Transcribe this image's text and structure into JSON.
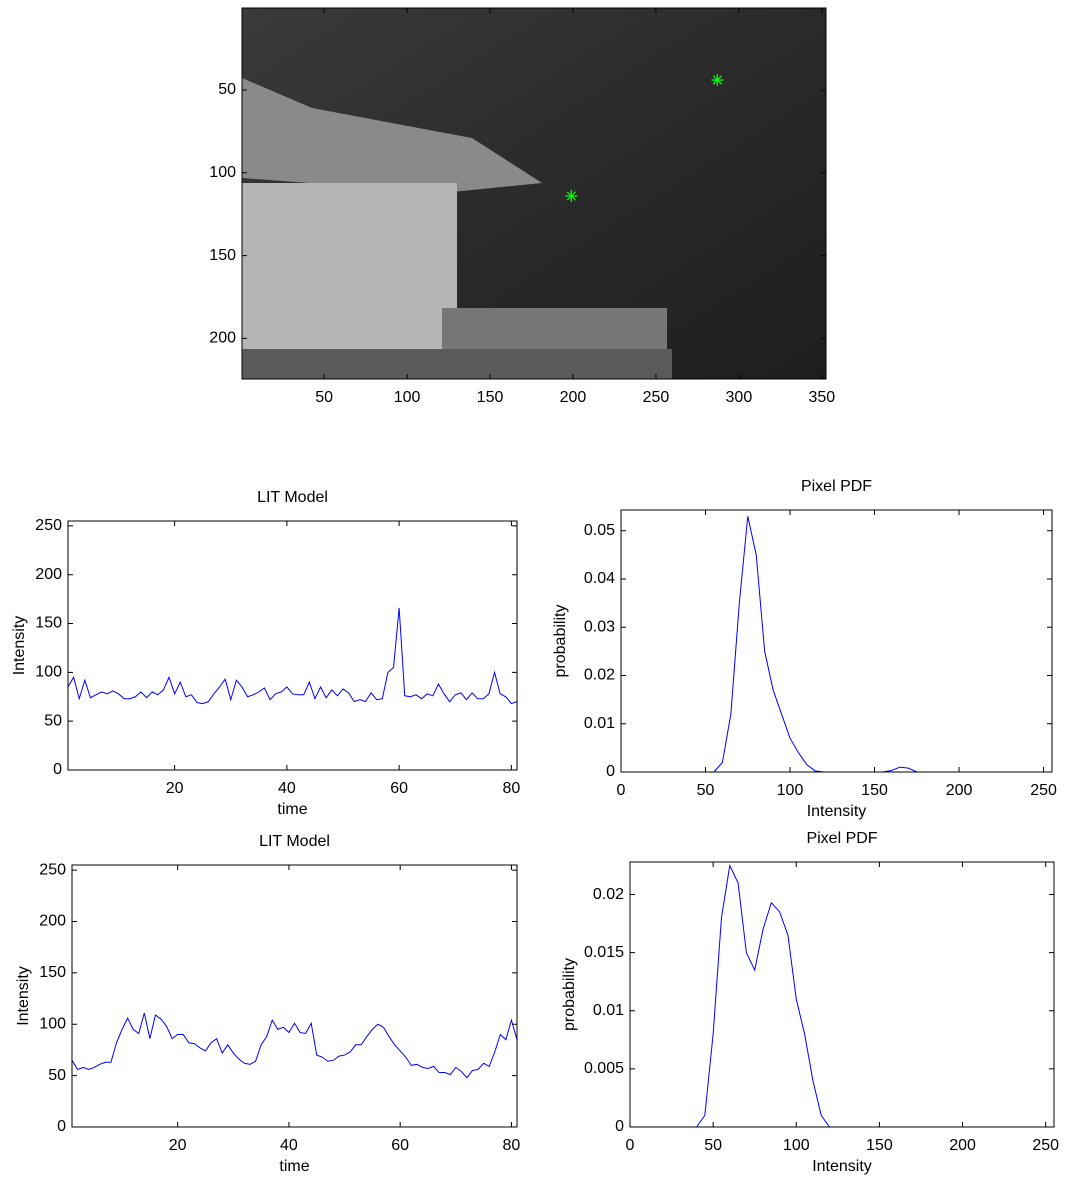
{
  "chart_data": [
    {
      "type": "image",
      "xlim": [
        0.5,
        352.5
      ],
      "ylim": [
        0.5,
        224.5
      ],
      "y_reversed": true,
      "xticks": [
        50,
        100,
        150,
        200,
        250,
        300,
        350
      ],
      "yticks": [
        50,
        100,
        150,
        200
      ],
      "points": {
        "x": [
          287,
          199
        ],
        "y": [
          44,
          114
        ],
        "color": "#00ff00"
      }
    },
    {
      "type": "line",
      "title": "LIT Model",
      "xlabel": "time",
      "ylabel": "Intensity",
      "color": "#0000ff",
      "xlim": [
        1,
        81
      ],
      "ylim": [
        0,
        255
      ],
      "xticks": [
        20,
        40,
        60,
        80
      ],
      "yticks": [
        0,
        50,
        100,
        150,
        200,
        250
      ],
      "x": [
        1,
        2,
        3,
        4,
        5,
        6,
        7,
        8,
        9,
        10,
        11,
        12,
        13,
        14,
        15,
        16,
        17,
        18,
        19,
        20,
        21,
        22,
        23,
        24,
        25,
        26,
        27,
        28,
        29,
        30,
        31,
        32,
        33,
        34,
        35,
        36,
        37,
        38,
        39,
        40,
        41,
        42,
        43,
        44,
        45,
        46,
        47,
        48,
        49,
        50,
        51,
        52,
        53,
        54,
        55,
        56,
        57,
        58,
        59,
        60,
        61,
        62,
        63,
        64,
        65,
        66,
        67,
        68,
        69,
        70,
        71,
        72,
        73,
        74,
        75,
        76,
        77,
        78,
        79,
        80,
        81
      ],
      "values": [
        85,
        95,
        73,
        92,
        74,
        77,
        80,
        78,
        81,
        78,
        73,
        73,
        75,
        80,
        74,
        80,
        77,
        82,
        95,
        78,
        90,
        75,
        77,
        69,
        68,
        70,
        78,
        85,
        93,
        72,
        92,
        85,
        75,
        77,
        80,
        84,
        72,
        78,
        80,
        85,
        78,
        77,
        77,
        90,
        73,
        85,
        74,
        82,
        76,
        83,
        79,
        70,
        72,
        70,
        79,
        72,
        73,
        100,
        105,
        166,
        76,
        75,
        77,
        73,
        78,
        76,
        88,
        78,
        70,
        77,
        79,
        72,
        79,
        73,
        73,
        78,
        100,
        78,
        75,
        68,
        70
      ]
    },
    {
      "type": "line",
      "title": "Pixel PDF",
      "xlabel": "Intensity",
      "ylabel": "probability",
      "color": "#0000ff",
      "xlim": [
        0,
        255
      ],
      "ylim": [
        0,
        0.0543
      ],
      "xticks": [
        0,
        50,
        100,
        150,
        200,
        250
      ],
      "yticks": [
        0,
        0.01,
        0.02,
        0.03,
        0.04,
        0.05
      ],
      "x": [
        0,
        5,
        10,
        15,
        20,
        25,
        30,
        35,
        40,
        45,
        50,
        55,
        60,
        65,
        70,
        75,
        80,
        85,
        90,
        95,
        100,
        105,
        110,
        115,
        120,
        125,
        130,
        135,
        140,
        145,
        150,
        155,
        160,
        165,
        170,
        175,
        180,
        185,
        190,
        195,
        200,
        205,
        210,
        215,
        220,
        225,
        230,
        235,
        240,
        245,
        250,
        255
      ],
      "values": [
        0,
        0,
        0,
        0,
        0,
        0,
        0,
        0,
        0,
        0,
        0,
        0,
        0.002,
        0.012,
        0.035,
        0.053,
        0.045,
        0.025,
        0.017,
        0.012,
        0.007,
        0.004,
        0.0015,
        0.0002,
        0,
        0,
        0,
        0,
        0,
        0,
        0,
        0,
        0.0003,
        0.001,
        0.0008,
        0,
        0,
        0,
        0,
        0,
        0,
        0,
        0,
        0,
        0,
        0,
        0,
        0,
        0,
        0,
        0,
        0
      ]
    },
    {
      "type": "line",
      "title": "LIT Model",
      "xlabel": "time",
      "ylabel": "Intensity",
      "color": "#0000ff",
      "xlim": [
        1,
        81
      ],
      "ylim": [
        0,
        255
      ],
      "xticks": [
        20,
        40,
        60,
        80
      ],
      "yticks": [
        0,
        50,
        100,
        150,
        200,
        250
      ],
      "x": [
        1,
        2,
        3,
        4,
        5,
        6,
        7,
        8,
        9,
        10,
        11,
        12,
        13,
        14,
        15,
        16,
        17,
        18,
        19,
        20,
        21,
        22,
        23,
        24,
        25,
        26,
        27,
        28,
        29,
        30,
        31,
        32,
        33,
        34,
        35,
        36,
        37,
        38,
        39,
        40,
        41,
        42,
        43,
        44,
        45,
        46,
        47,
        48,
        49,
        50,
        51,
        52,
        53,
        54,
        55,
        56,
        57,
        58,
        59,
        60,
        61,
        62,
        63,
        64,
        65,
        66,
        67,
        68,
        69,
        70,
        71,
        72,
        73,
        74,
        75,
        76,
        77,
        78,
        79,
        80,
        81
      ],
      "values": [
        65,
        56,
        58,
        56,
        58,
        61,
        63,
        63,
        82,
        95,
        106,
        95,
        91,
        111,
        86,
        109,
        105,
        98,
        86,
        90,
        90,
        82,
        81,
        77,
        74,
        82,
        86,
        72,
        80,
        72,
        66,
        62,
        61,
        64,
        80,
        88,
        104,
        95,
        97,
        92,
        101,
        92,
        91,
        101,
        70,
        68,
        64,
        65,
        69,
        70,
        73,
        80,
        80,
        88,
        95,
        100,
        97,
        88,
        80,
        74,
        68,
        60,
        61,
        58,
        57,
        59,
        53,
        53,
        51,
        58,
        54,
        48,
        55,
        56,
        62,
        59,
        73,
        90,
        85,
        104,
        85
      ]
    },
    {
      "type": "line",
      "title": "Pixel PDF",
      "xlabel": "Intensity",
      "ylabel": "probability",
      "color": "#0000ff",
      "xlim": [
        0,
        255
      ],
      "ylim": [
        0,
        0.0228
      ],
      "xticks": [
        0,
        50,
        100,
        150,
        200,
        250
      ],
      "yticks": [
        0,
        0.005,
        0.01,
        0.015,
        0.02
      ],
      "x": [
        0,
        5,
        10,
        15,
        20,
        25,
        30,
        35,
        40,
        45,
        50,
        55,
        60,
        65,
        70,
        75,
        80,
        85,
        90,
        95,
        100,
        105,
        110,
        115,
        120,
        125,
        130,
        135,
        140,
        145,
        150,
        155,
        160,
        165,
        170,
        175,
        180,
        185,
        190,
        195,
        200,
        205,
        210,
        215,
        220,
        225,
        230,
        235,
        240,
        245,
        250,
        255
      ],
      "values": [
        0,
        0,
        0,
        0,
        0,
        0,
        0,
        0,
        0,
        0.001,
        0.008,
        0.018,
        0.0225,
        0.021,
        0.015,
        0.0135,
        0.017,
        0.0193,
        0.0185,
        0.0165,
        0.011,
        0.008,
        0.004,
        0.001,
        0,
        0,
        0,
        0,
        0,
        0,
        0,
        0,
        0,
        0,
        0,
        0,
        0,
        0,
        0,
        0,
        0,
        0,
        0,
        0,
        0,
        0,
        0,
        0,
        0,
        0,
        0,
        0
      ]
    }
  ]
}
